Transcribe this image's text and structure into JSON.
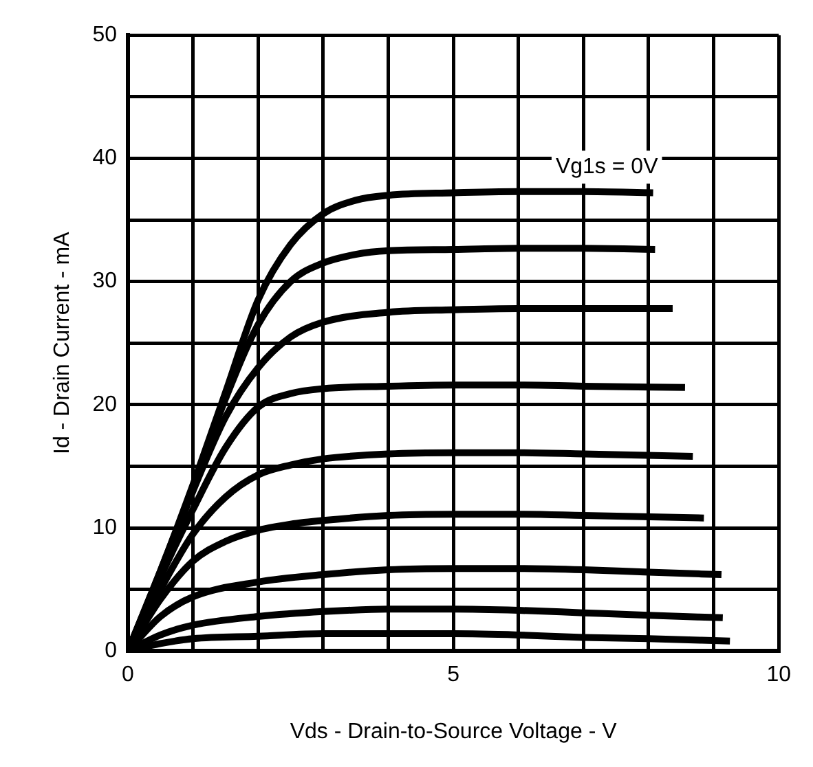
{
  "chart_data": {
    "type": "line",
    "xlabel": "Vds - Drain-to-Source Voltage - V",
    "ylabel": "Id - Drain Current - mA",
    "xlim": [
      0,
      10
    ],
    "ylim": [
      0,
      50
    ],
    "xticks": [
      0,
      {
        "value": 1,
        "label": null
      },
      {
        "value": 2,
        "label": null
      },
      {
        "value": 3,
        "label": null
      },
      {
        "value": 4,
        "label": null
      },
      5,
      {
        "value": 6,
        "label": null
      },
      {
        "value": 7,
        "label": null
      },
      {
        "value": 8,
        "label": null
      },
      {
        "value": 9,
        "label": null
      },
      10
    ],
    "yticks": [
      0,
      {
        "value": 5,
        "label": null
      },
      10,
      {
        "value": 15,
        "label": null
      },
      20,
      {
        "value": 25,
        "label": null
      },
      30,
      {
        "value": 35,
        "label": null
      },
      40,
      {
        "value": 45,
        "label": null
      },
      50
    ],
    "grid": true,
    "legend": false,
    "annotations": [
      "Vg1s = 0V"
    ],
    "series": [
      {
        "color": "#000000",
        "x": [
          0,
          0.5,
          1,
          1.5,
          2,
          2.5,
          3,
          3.5,
          4,
          5,
          6,
          7,
          8.07
        ],
        "values": [
          0,
          6.5,
          13.5,
          21,
          28.5,
          33,
          35.5,
          36.6,
          37,
          37.2,
          37.3,
          37.3,
          37.2
        ]
      },
      {
        "color": "#000000",
        "x": [
          0,
          0.5,
          1,
          1.5,
          2,
          2.5,
          3,
          3.5,
          4,
          5,
          6,
          7,
          8.1
        ],
        "values": [
          0,
          6.5,
          13.3,
          20.5,
          26.5,
          30,
          31.5,
          32.2,
          32.5,
          32.6,
          32.7,
          32.7,
          32.6
        ]
      },
      {
        "color": "#000000",
        "x": [
          0,
          0.5,
          1,
          1.5,
          2,
          2.5,
          3,
          4,
          5,
          6,
          7,
          8.37
        ],
        "values": [
          0,
          6.3,
          13,
          19,
          23,
          25.5,
          26.7,
          27.5,
          27.7,
          27.8,
          27.8,
          27.8
        ]
      },
      {
        "color": "#000000",
        "x": [
          0,
          0.5,
          1,
          1.5,
          2,
          2.5,
          3,
          4,
          5,
          6,
          7,
          8.56
        ],
        "values": [
          0,
          6,
          11.5,
          16.5,
          19.8,
          20.9,
          21.3,
          21.5,
          21.6,
          21.6,
          21.5,
          21.4
        ]
      },
      {
        "color": "#000000",
        "x": [
          0,
          0.5,
          1,
          1.5,
          2,
          2.5,
          3,
          4,
          5,
          6,
          7,
          8.68
        ],
        "values": [
          0,
          5,
          9.5,
          12.5,
          14.3,
          15.1,
          15.6,
          16,
          16.1,
          16.1,
          16,
          15.8
        ]
      },
      {
        "color": "#000000",
        "x": [
          0,
          0.5,
          1,
          1.5,
          2,
          2.5,
          3,
          4,
          5,
          6,
          7,
          8.85
        ],
        "values": [
          0,
          4.2,
          7.3,
          8.9,
          9.8,
          10.3,
          10.6,
          11,
          11.1,
          11.1,
          11,
          10.8
        ]
      },
      {
        "color": "#000000",
        "x": [
          0,
          0.5,
          1,
          2,
          3,
          4,
          5,
          6,
          7,
          8,
          9.12
        ],
        "values": [
          0,
          2.8,
          4.4,
          5.6,
          6.2,
          6.6,
          6.7,
          6.7,
          6.6,
          6.4,
          6.2
        ]
      },
      {
        "color": "#000000",
        "x": [
          0,
          0.5,
          1,
          2,
          3,
          4,
          5,
          6,
          7,
          8,
          9.14
        ],
        "values": [
          0,
          1.3,
          2.1,
          2.8,
          3.2,
          3.4,
          3.4,
          3.3,
          3.1,
          2.9,
          2.7
        ]
      },
      {
        "color": "#000000",
        "x": [
          0,
          0.5,
          1,
          2,
          3,
          4,
          5,
          6,
          7,
          8,
          9.25
        ],
        "values": [
          0,
          0.6,
          1,
          1.2,
          1.4,
          1.4,
          1.4,
          1.3,
          1.1,
          1,
          0.8
        ]
      }
    ]
  }
}
